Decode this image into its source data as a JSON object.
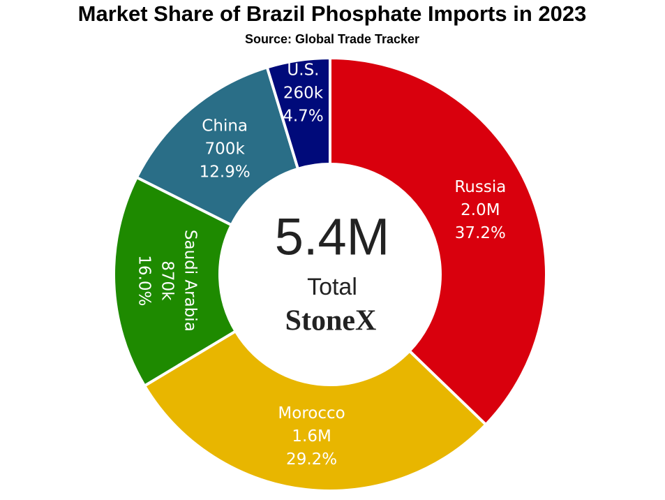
{
  "chart_data": {
    "type": "donut",
    "title": "Market Share of Brazil Phosphate Imports in 2023",
    "subtitle": "Source: Global Trade Tracker",
    "categories": [
      "Russia",
      "Morocco",
      "Saudi Arabia",
      "China",
      "U.S."
    ],
    "values": [
      37.2,
      29.2,
      16.0,
      12.9,
      4.7
    ],
    "value_labels": [
      "37.2%",
      "29.2%",
      "16.0%",
      "12.9%",
      "4.7%"
    ],
    "amounts": [
      2000000,
      1600000,
      870000,
      700000,
      260000
    ],
    "amount_labels": [
      "2.0M",
      "1.6M",
      "870k",
      "700k",
      "260k"
    ],
    "colors": [
      "#d9000d",
      "#e8b600",
      "#1e8a00",
      "#2a6e87",
      "#000a7a"
    ],
    "total": 5400000,
    "total_label": "5.4M",
    "total_caption": "Total",
    "logo": "StoneX"
  }
}
